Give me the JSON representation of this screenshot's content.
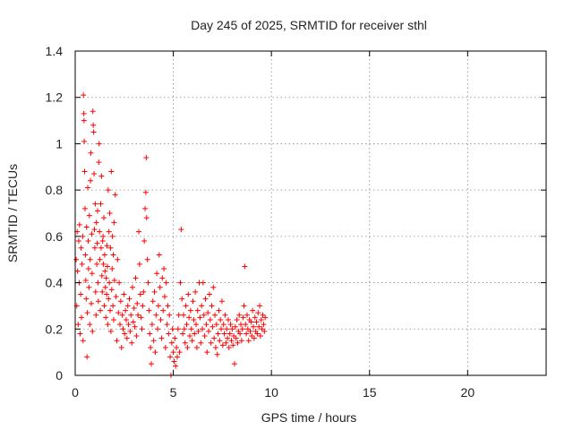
{
  "chart_data": {
    "type": "scatter",
    "title": "Day 245 of 2025, SRMTID for receiver sthl",
    "xlabel": "GPS time / hours",
    "ylabel": "SRMTID / TECUs",
    "xlim": [
      0,
      24
    ],
    "ylim": [
      0,
      1.4
    ],
    "xticks": [
      0,
      5,
      10,
      15,
      20
    ],
    "xtick_labels": [
      "0",
      "5",
      "10",
      "15",
      "20"
    ],
    "yticks": [
      0,
      0.2,
      0.4,
      0.6,
      0.8,
      1.0,
      1.2,
      1.4
    ],
    "ytick_labels": [
      "0",
      "0.2",
      "0.4",
      "0.6",
      "0.8",
      "1",
      "1.2",
      "1.4"
    ],
    "grid": true,
    "marker": "+",
    "marker_color": "#ff0000",
    "series": [
      {
        "name": "SRMTID",
        "points": [
          [
            0.05,
            0.5
          ],
          [
            0.08,
            0.3
          ],
          [
            0.1,
            0.62
          ],
          [
            0.12,
            0.45
          ],
          [
            0.15,
            0.22
          ],
          [
            0.18,
            0.58
          ],
          [
            0.2,
            0.4
          ],
          [
            0.22,
            0.65
          ],
          [
            0.25,
            0.18
          ],
          [
            0.28,
            0.35
          ],
          [
            0.3,
            0.55
          ],
          [
            0.32,
            0.25
          ],
          [
            0.35,
            0.48
          ],
          [
            0.38,
            0.6
          ],
          [
            0.4,
            0.15
          ],
          [
            0.42,
            1.21
          ],
          [
            0.44,
            1.13
          ],
          [
            0.45,
            1.1
          ],
          [
            0.46,
            1.01
          ],
          [
            0.48,
            0.88
          ],
          [
            0.5,
            0.72
          ],
          [
            0.52,
            0.52
          ],
          [
            0.54,
            0.41
          ],
          [
            0.56,
            0.33
          ],
          [
            0.58,
            0.64
          ],
          [
            0.6,
            0.08
          ],
          [
            0.62,
            0.27
          ],
          [
            0.64,
            0.81
          ],
          [
            0.66,
            0.58
          ],
          [
            0.68,
            0.46
          ],
          [
            0.7,
            0.38
          ],
          [
            0.72,
            0.69
          ],
          [
            0.74,
            0.22
          ],
          [
            0.76,
            0.5
          ],
          [
            0.78,
            0.84
          ],
          [
            0.8,
            0.96
          ],
          [
            0.82,
            0.31
          ],
          [
            0.84,
            0.61
          ],
          [
            0.86,
            0.44
          ],
          [
            0.88,
            0.19
          ],
          [
            0.9,
            1.14
          ],
          [
            0.92,
            1.08
          ],
          [
            0.94,
            1.05
          ],
          [
            0.96,
            0.87
          ],
          [
            0.98,
            0.63
          ],
          [
            1.0,
            0.55
          ],
          [
            1.02,
            0.74
          ],
          [
            1.04,
            0.36
          ],
          [
            1.06,
            0.26
          ],
          [
            1.08,
            0.66
          ],
          [
            1.1,
            0.48
          ],
          [
            1.12,
            0.57
          ],
          [
            1.14,
            0.71
          ],
          [
            1.16,
            0.4
          ],
          [
            1.18,
            0.32
          ],
          [
            1.2,
            0.92
          ],
          [
            1.22,
            1.0
          ],
          [
            1.24,
            0.62
          ],
          [
            1.26,
            0.5
          ],
          [
            1.28,
            0.28
          ],
          [
            1.3,
            0.74
          ],
          [
            1.32,
            0.55
          ],
          [
            1.34,
            0.86
          ],
          [
            1.36,
            0.43
          ],
          [
            1.38,
            0.36
          ],
          [
            1.4,
            0.58
          ],
          [
            1.42,
            0.6
          ],
          [
            1.44,
            0.48
          ],
          [
            1.46,
            0.68
          ],
          [
            1.48,
            0.3
          ],
          [
            1.5,
            0.52
          ],
          [
            1.52,
            0.45
          ],
          [
            1.54,
            0.38
          ],
          [
            1.56,
            0.25
          ],
          [
            1.58,
            0.42
          ],
          [
            1.6,
            0.35
          ],
          [
            1.62,
            0.56
          ],
          [
            1.64,
            0.47
          ],
          [
            1.66,
            0.22
          ],
          [
            1.68,
            0.8
          ],
          [
            1.7,
            0.33
          ],
          [
            1.72,
            0.62
          ],
          [
            1.74,
            0.4
          ],
          [
            1.76,
            0.7
          ],
          [
            1.78,
            0.28
          ],
          [
            1.8,
            0.55
          ],
          [
            1.82,
            0.19
          ],
          [
            1.84,
            0.88
          ],
          [
            1.86,
            0.37
          ],
          [
            1.88,
            0.46
          ],
          [
            1.9,
            0.6
          ],
          [
            1.92,
            0.3
          ],
          [
            1.94,
            0.52
          ],
          [
            1.96,
            0.24
          ],
          [
            1.98,
            0.66
          ],
          [
            2.0,
            0.41
          ],
          [
            2.04,
            0.78
          ],
          [
            2.08,
            0.34
          ],
          [
            2.12,
            0.15
          ],
          [
            2.16,
            0.5
          ],
          [
            2.2,
            0.27
          ],
          [
            2.24,
            0.4
          ],
          [
            2.28,
            0.22
          ],
          [
            2.32,
            0.32
          ],
          [
            2.36,
            0.12
          ],
          [
            2.4,
            0.26
          ],
          [
            2.44,
            0.2
          ],
          [
            2.48,
            0.35
          ],
          [
            2.52,
            0.18
          ],
          [
            2.56,
            0.28
          ],
          [
            2.6,
            0.24
          ],
          [
            2.64,
            0.16
          ],
          [
            2.68,
            0.3
          ],
          [
            2.72,
            0.22
          ],
          [
            2.76,
            0.33
          ],
          [
            2.8,
            0.19
          ],
          [
            2.84,
            0.26
          ],
          [
            2.88,
            0.14
          ],
          [
            2.92,
            0.38
          ],
          [
            2.96,
            0.23
          ],
          [
            3.0,
            0.29
          ],
          [
            3.04,
            0.21
          ],
          [
            3.08,
            0.42
          ],
          [
            3.12,
            0.17
          ],
          [
            3.16,
            0.31
          ],
          [
            3.2,
            0.26
          ],
          [
            3.24,
            0.62
          ],
          [
            3.28,
            0.48
          ],
          [
            3.32,
            0.35
          ],
          [
            3.36,
            0.25
          ],
          [
            3.4,
            0.2
          ],
          [
            3.44,
            0.3
          ],
          [
            3.48,
            0.36
          ],
          [
            3.52,
            0.58
          ],
          [
            3.56,
            0.72
          ],
          [
            3.6,
            0.79
          ],
          [
            3.62,
            0.94
          ],
          [
            3.64,
            0.68
          ],
          [
            3.68,
            0.5
          ],
          [
            3.72,
            0.4
          ],
          [
            3.76,
            0.28
          ],
          [
            3.8,
            0.18
          ],
          [
            3.84,
            0.12
          ],
          [
            3.88,
            0.05
          ],
          [
            3.92,
            0.22
          ],
          [
            3.96,
            0.32
          ],
          [
            4.0,
            0.15
          ],
          [
            4.04,
            0.36
          ],
          [
            4.08,
            0.1
          ],
          [
            4.12,
            0.26
          ],
          [
            4.16,
            0.44
          ],
          [
            4.2,
            0.2
          ],
          [
            4.24,
            0.3
          ],
          [
            4.28,
            0.52
          ],
          [
            4.32,
            0.38
          ],
          [
            4.36,
            0.24
          ],
          [
            4.4,
            0.16
          ],
          [
            4.44,
            0.42
          ],
          [
            4.48,
            0.28
          ],
          [
            4.52,
            0.46
          ],
          [
            4.56,
            0.34
          ],
          [
            4.6,
            0.12
          ],
          [
            4.64,
            0.4
          ],
          [
            4.68,
            0.22
          ],
          [
            4.72,
            0.3
          ],
          [
            4.76,
            0.18
          ],
          [
            4.8,
            0.26
          ],
          [
            4.84,
            0.08
          ],
          [
            4.88,
            0.0
          ],
          [
            4.92,
            0.14
          ],
          [
            4.96,
            0.2
          ],
          [
            5.0,
            0.1
          ],
          [
            5.04,
            0.06
          ],
          [
            5.08,
            0.16
          ],
          [
            5.12,
            0.04
          ],
          [
            5.16,
            0.12
          ],
          [
            5.2,
            0.08
          ],
          [
            5.24,
            0.2
          ],
          [
            5.28,
            0.26
          ],
          [
            5.32,
            0.1
          ],
          [
            5.36,
            0.4
          ],
          [
            5.4,
            0.63
          ],
          [
            5.44,
            0.33
          ],
          [
            5.48,
            0.18
          ],
          [
            5.52,
            0.26
          ],
          [
            5.56,
            0.2
          ],
          [
            5.6,
            0.14
          ],
          [
            5.64,
            0.3
          ],
          [
            5.68,
            0.22
          ],
          [
            5.72,
            0.12
          ],
          [
            5.76,
            0.35
          ],
          [
            5.8,
            0.25
          ],
          [
            5.84,
            0.17
          ],
          [
            5.88,
            0.28
          ],
          [
            5.92,
            0.2
          ],
          [
            5.96,
            0.15
          ],
          [
            6.0,
            0.32
          ],
          [
            6.04,
            0.24
          ],
          [
            6.08,
            0.18
          ],
          [
            6.12,
            0.36
          ],
          [
            6.16,
            0.22
          ],
          [
            6.2,
            0.12
          ],
          [
            6.24,
            0.28
          ],
          [
            6.28,
            0.19
          ],
          [
            6.32,
            0.4
          ],
          [
            6.36,
            0.25
          ],
          [
            6.4,
            0.14
          ],
          [
            6.44,
            0.3
          ],
          [
            6.48,
            0.2
          ],
          [
            6.52,
            0.4
          ],
          [
            6.56,
            0.26
          ],
          [
            6.6,
            0.17
          ],
          [
            6.64,
            0.33
          ],
          [
            6.68,
            0.22
          ],
          [
            6.72,
            0.1
          ],
          [
            6.76,
            0.27
          ],
          [
            6.8,
            0.19
          ],
          [
            6.84,
            0.35
          ],
          [
            6.88,
            0.24
          ],
          [
            6.92,
            0.14
          ],
          [
            6.96,
            0.3
          ],
          [
            7.0,
            0.21
          ],
          [
            7.04,
            0.38
          ],
          [
            7.08,
            0.16
          ],
          [
            7.12,
            0.26
          ],
          [
            7.16,
            0.12
          ],
          [
            7.2,
            0.22
          ],
          [
            7.24,
            0.09
          ],
          [
            7.28,
            0.18
          ],
          [
            7.32,
            0.28
          ],
          [
            7.36,
            0.15
          ],
          [
            7.4,
            0.24
          ],
          [
            7.44,
            0.2
          ],
          [
            7.48,
            0.32
          ],
          [
            7.52,
            0.13
          ],
          [
            7.56,
            0.22
          ],
          [
            7.6,
            0.18
          ],
          [
            7.64,
            0.26
          ],
          [
            7.68,
            0.14
          ],
          [
            7.72,
            0.2
          ],
          [
            7.76,
            0.16
          ],
          [
            7.8,
            0.24
          ],
          [
            7.84,
            0.12
          ],
          [
            7.88,
            0.18
          ],
          [
            7.92,
            0.22
          ],
          [
            7.96,
            0.15
          ],
          [
            8.0,
            0.2
          ],
          [
            8.04,
            0.13
          ],
          [
            8.08,
            0.17
          ],
          [
            8.12,
            0.05
          ],
          [
            8.16,
            0.21
          ],
          [
            8.2,
            0.16
          ],
          [
            8.24,
            0.24
          ],
          [
            8.28,
            0.14
          ],
          [
            8.32,
            0.19
          ],
          [
            8.36,
            0.26
          ],
          [
            8.4,
            0.18
          ],
          [
            8.44,
            0.22
          ],
          [
            8.48,
            0.15
          ],
          [
            8.52,
            0.2
          ],
          [
            8.56,
            0.25
          ],
          [
            8.6,
            0.3
          ],
          [
            8.64,
            0.47
          ],
          [
            8.68,
            0.22
          ],
          [
            8.72,
            0.18
          ],
          [
            8.76,
            0.26
          ],
          [
            8.8,
            0.2
          ],
          [
            8.84,
            0.15
          ],
          [
            8.88,
            0.24
          ],
          [
            8.92,
            0.19
          ],
          [
            8.96,
            0.23
          ],
          [
            9.0,
            0.17
          ],
          [
            9.04,
            0.28
          ],
          [
            9.08,
            0.21
          ],
          [
            9.12,
            0.16
          ],
          [
            9.16,
            0.25
          ],
          [
            9.2,
            0.19
          ],
          [
            9.24,
            0.23
          ],
          [
            9.28,
            0.18
          ],
          [
            9.32,
            0.27
          ],
          [
            9.36,
            0.21
          ],
          [
            9.4,
            0.3
          ],
          [
            9.44,
            0.17
          ],
          [
            9.48,
            0.24
          ],
          [
            9.52,
            0.2
          ],
          [
            9.56,
            0.26
          ],
          [
            9.6,
            0.22
          ],
          [
            9.64,
            0.19
          ],
          [
            9.68,
            0.25
          ]
        ]
      }
    ]
  }
}
